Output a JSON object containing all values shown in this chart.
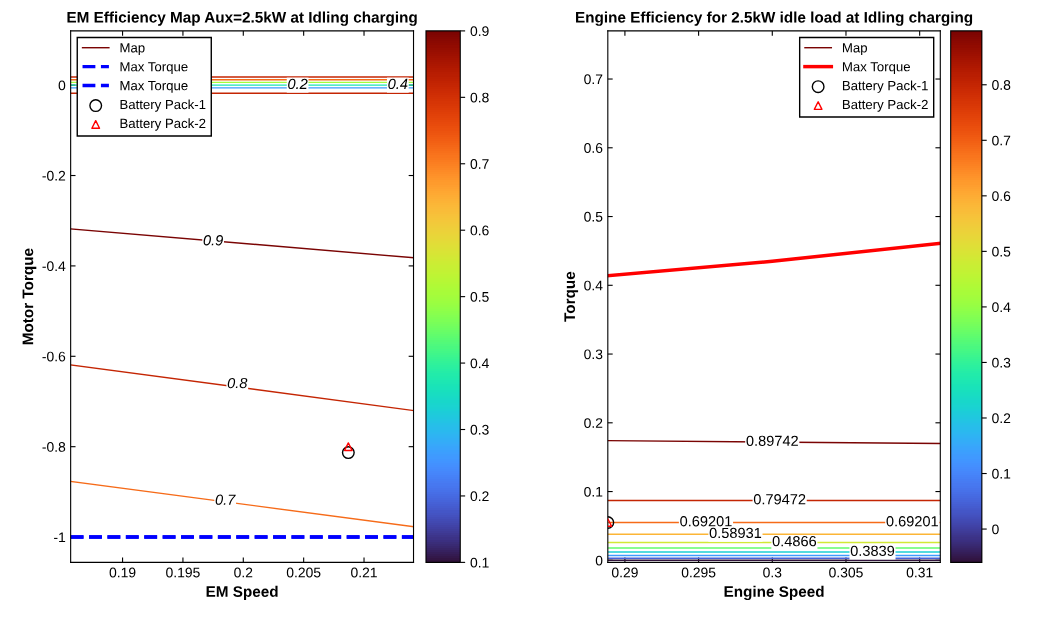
{
  "chart_data": [
    {
      "type": "line",
      "title": "EM Efficiency Map Aux=2.5kW at Idling charging",
      "xlabel": "EM Speed",
      "ylabel": "Motor Torque",
      "xlim": [
        0.1857,
        0.2141
      ],
      "ylim": [
        -1.056,
        0.12
      ],
      "xticks": [
        0.19,
        0.195,
        0.2,
        0.205,
        0.21
      ],
      "yticks": [
        -1,
        -0.8,
        -0.6,
        -0.4,
        -0.2,
        0
      ],
      "clim": [
        0.1,
        0.9
      ],
      "cticks": [
        0.1,
        0.2,
        0.3,
        0.4,
        0.5,
        0.6,
        0.7,
        0.8,
        0.9
      ],
      "legend": "top left",
      "series": [
        {
          "name": "Map",
          "color": "#7a0403",
          "x": [
            0.1857,
            0.2141
          ],
          "values": [
            -0.318,
            -0.382
          ]
        },
        {
          "color": "#c42503",
          "x": [
            0.1857,
            0.2141
          ],
          "values": [
            -0.619,
            -0.72
          ]
        },
        {
          "color": "#f66b19",
          "x": [
            0.1857,
            0.2141
          ],
          "values": [
            -0.877,
            -0.977
          ]
        },
        {
          "color": "#c42503",
          "x": [
            0.1857,
            0.2141
          ],
          "values": [
            0.018,
            0.018
          ]
        },
        {
          "color": "#f66b19",
          "x": [
            0.1857,
            0.2141
          ],
          "values": [
            0.012,
            0.012
          ]
        },
        {
          "color": "#a4fc3c",
          "x": [
            0.1857,
            0.2141
          ],
          "values": [
            0.006,
            0.006
          ]
        },
        {
          "color": "#1ae4b6",
          "x": [
            0.1857,
            0.2141
          ],
          "values": [
            0.0,
            0.0
          ]
        },
        {
          "color": "#3e9bfe",
          "x": [
            0.1857,
            0.2141
          ],
          "values": [
            -0.006,
            -0.006
          ]
        },
        {
          "color": "#c42503",
          "x": [
            0.1857,
            0.2141
          ],
          "values": [
            -0.018,
            -0.018
          ]
        },
        {
          "name": "Max Torque",
          "line_style": "dashed",
          "color": "#0000ff",
          "x": [
            0.1857,
            0.2141
          ],
          "values": [
            -1,
            -1
          ]
        },
        {
          "name": "Max Torque",
          "line_style": "dashed",
          "color": "#0000ff",
          "x": [
            0.1857,
            0.2141
          ],
          "values": [
            -1,
            -1
          ]
        },
        {
          "name": "Battery Pack-1",
          "type": "scatter",
          "marker": "circle",
          "color": "#000000",
          "x": [
            0.2087
          ],
          "values": [
            -0.813
          ]
        },
        {
          "name": "Battery Pack-2",
          "type": "scatter",
          "marker": "triangle",
          "color": "#ff0000",
          "x": [
            0.2087
          ],
          "values": [
            -0.8
          ]
        }
      ],
      "annotations": [
        {
          "text": "0.9",
          "x": 0.1975,
          "y": -0.346
        },
        {
          "text": "0.8",
          "x": 0.1995,
          "y": -0.662
        },
        {
          "text": "0.7",
          "x": 0.1985,
          "y": -0.92
        },
        {
          "text": "0.2",
          "x": 0.2045,
          "y": 0.0
        },
        {
          "text": "0.4",
          "x": 0.2128,
          "y": 0.0
        }
      ]
    },
    {
      "type": "line",
      "title": "Engine Efficiency for 2.5kW idle load at Idling charging",
      "xlabel": "Engine Speed",
      "ylabel": "Torque",
      "xlim": [
        0.28884,
        0.3114
      ],
      "ylim": [
        -0.003,
        0.77
      ],
      "xticks": [
        0.29,
        0.295,
        0.3,
        0.305,
        0.31
      ],
      "yticks": [
        0,
        0.1,
        0.2,
        0.3,
        0.4,
        0.5,
        0.6,
        0.7
      ],
      "clim": [
        -0.06,
        0.897
      ],
      "cticks": [
        0,
        0.1,
        0.2,
        0.3,
        0.4,
        0.5,
        0.6,
        0.7,
        0.8
      ],
      "legend": "top right",
      "series": [
        {
          "name": "Map",
          "color": "#7a0403",
          "x": [
            0.28884,
            0.3114
          ],
          "values": [
            0.174,
            0.17
          ]
        },
        {
          "color": "#c42503",
          "x": [
            0.28884,
            0.3114
          ],
          "values": [
            0.087,
            0.087
          ]
        },
        {
          "color": "#f66b19",
          "x": [
            0.28884,
            0.3114
          ],
          "values": [
            0.055,
            0.055
          ]
        },
        {
          "color": "#fcb536",
          "x": [
            0.28884,
            0.3114
          ],
          "values": [
            0.038,
            0.038
          ]
        },
        {
          "color": "#d1e935",
          "x": [
            0.28884,
            0.3114
          ],
          "values": [
            0.026,
            0.026
          ]
        },
        {
          "color": "#62fc6b",
          "x": [
            0.28884,
            0.3114
          ],
          "values": [
            0.018,
            0.018
          ]
        },
        {
          "color": "#1bcfd4",
          "x": [
            0.28884,
            0.3114
          ],
          "values": [
            0.012,
            0.012
          ]
        },
        {
          "color": "#3e9bfe",
          "x": [
            0.28884,
            0.3114
          ],
          "values": [
            0.007,
            0.007
          ]
        },
        {
          "color": "#4662d7",
          "x": [
            0.28884,
            0.3114
          ],
          "values": [
            0.003,
            0.003
          ]
        },
        {
          "color": "#30123b",
          "x": [
            0.28884,
            0.3114
          ],
          "values": [
            0.0,
            0.0
          ]
        },
        {
          "name": "Max Torque",
          "line_style": "solid",
          "color": "#ff0000",
          "x": [
            0.28884,
            0.3,
            0.3114
          ],
          "values": [
            0.414,
            0.435,
            0.461
          ]
        },
        {
          "name": "Battery Pack-1",
          "type": "scatter",
          "marker": "circle",
          "color": "#000000",
          "x": [
            0.28884
          ],
          "values": [
            0.055
          ]
        },
        {
          "name": "Battery Pack-2",
          "type": "scatter",
          "marker": "triangle",
          "color": "#ff0000",
          "x": [
            0.28884
          ],
          "values": [
            0.055
          ]
        }
      ],
      "annotations": [
        {
          "text": "0.89742",
          "x": 0.3,
          "y": 0.172
        },
        {
          "text": "0.79472",
          "x": 0.3005,
          "y": 0.087
        },
        {
          "text": "0.69201",
          "x": 0.2955,
          "y": 0.055
        },
        {
          "text": "0.69201",
          "x": 0.3095,
          "y": 0.055
        },
        {
          "text": "0.58931",
          "x": 0.2975,
          "y": 0.038
        },
        {
          "text": "0.4866",
          "x": 0.3015,
          "y": 0.026
        },
        {
          "text": "0.3839",
          "x": 0.3068,
          "y": 0.012
        }
      ]
    }
  ]
}
